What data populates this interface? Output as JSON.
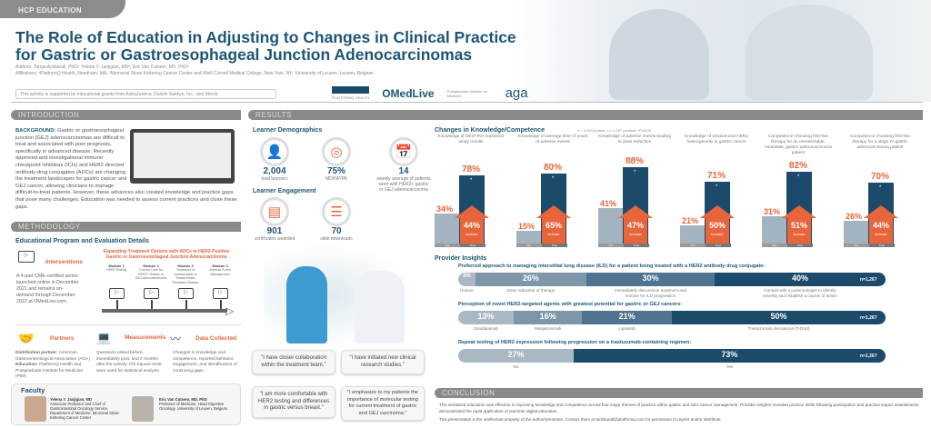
{
  "header": {
    "tag": "HCP EDUCATION",
    "title": "The Role of Education in Adjusting to Changes in Clinical Practice for Gastric or Gastroesophageal Junction Adenocarcinomas",
    "authors": "Authors: Tariqa Ackbarali, PhD¹; Yelena Y. Janjigian, MD²; Eric Van Cutsem, MD, PhD³",
    "affiliations": "Affiliations: ¹PlatformQ Health, Needham, MA; ²Memorial Sloan Kettering Cancer Center and Weill Cornell Medical College, New York, NY; ³University of Leuven, Leuven, Belgium",
    "grant": "This activity is supported by educational grants from AstraZeneca; Daiichi Sankyo, Inc.; and Merck.",
    "logos": [
      "PLATFORMQ HEALTH",
      "OMedLive",
      "Postgraduate Institute for Medicine",
      "aga"
    ]
  },
  "introduction": {
    "heading": "INTRODUCTION",
    "lead": "BACKGROUND:",
    "text": "Gastric or gastroesophageal junction (GEJ) adenocarcinomas are difficult to treat and associated with poor prognosis, specifically in advanced disease. Recently approved and investigational immune checkpoint inhibitors (ICIs) and HER2-directed antibody-drug conjugates (ADCs) are changing the treatment landscapes for gastric cancer and GEJ cancer, allowing clinicians to manage difficult-to-treat patients. However, these advances also created knowledge and practice gaps that pose many challenges. Education was needed to assess current practices and close these gaps."
  },
  "methodology": {
    "heading": "METHODOLOGY",
    "subheading": "Educational Program and Evaluation Details",
    "interventions": {
      "label": "Interventions",
      "text": "A 4-part CME-certified series launched online in December 2021 and remains on-demand through December 2022 at OMedLive.com."
    },
    "series_title": "Expanding Treatment Options with ADCs in HER2-Positive Gastric or Gastroesophageal Junction Adenocarcinoma",
    "modules": [
      {
        "name": "Module 1",
        "desc": "HER2 Testing"
      },
      {
        "name": "Module 2",
        "desc": "Current Care for HER2+ Gastric or GEJ adenocarcinoma"
      },
      {
        "name": "Module 3",
        "desc": "Treatment of Unresectable or Trastuzumab-Resistant Disease"
      },
      {
        "name": "Module 4",
        "desc": "Adverse Event Management"
      }
    ],
    "partners": {
      "label": "Partners",
      "dist_lead": "Distribution partner:",
      "dist": "American Gastroenterological Association (AGA)",
      "edu_lead": "Education:",
      "edu": "PlatformQ Health and Postgraduate Institute for Medicine (PIM)"
    },
    "measurements": {
      "label": "Measurements",
      "text": "Questions asked before, immediately post, and 2 months after the activity. Chi Square tests were used for statistical analysis."
    },
    "data_collected": {
      "label": "Data Collected",
      "text": "Changes in knowledge and competence, reported behavior, engagement, and identification of continuing gaps."
    }
  },
  "faculty": {
    "heading": "Faculty",
    "people": [
      {
        "name": "Yelena Y. Janjigian, MD",
        "title": "Associate Professor and Chief of Gastrointestinal Oncology Service, Department of Medicine, Memorial Sloan Kettering Cancer Center"
      },
      {
        "name": "Eric Van Cutsem, MD, PhD",
        "title": "Professor of Medicine, Head Digestive Oncology, University of Leuven, Belgium"
      }
    ]
  },
  "results": {
    "heading": "RESULTS",
    "demographics_title": "Learner Demographics",
    "demographics": [
      {
        "value": "2,004",
        "label": "total learners",
        "icon": "user-icon"
      },
      {
        "value": "75%",
        "label": "MD/NP/PA",
        "icon": "target-icon"
      },
      {
        "value": "14",
        "label": "weekly average of patients seen with HER2+ gastric or GEJ adenocarcinoma",
        "icon": "calendar-icon"
      }
    ],
    "engagement_title": "Learner Engagement",
    "engagement": [
      {
        "value": "901",
        "label": "certificates awarded",
        "icon": "certificate-icon"
      },
      {
        "value": "70",
        "label": "slide downloads",
        "icon": "presentation-icon"
      }
    ],
    "quotes": [
      "\"I have closer collaboration within the treatment team.\"",
      "\"I have initiated new clinical research studies.\"",
      "\"I am more comfortable with HER2 testing and differences in gastric versus breast.\"",
      "\"I emphasize to my patients the importance of molecular testing for current treatment of gastric and GEJ carcinoma.\""
    ]
  },
  "chart_data": [
    {
      "type": "bar",
      "title": "Changes in Knowledge/Competence",
      "note": "n = 2,004 pretest, n = 1,267 posttest; *P<0.05",
      "categories": [
        "Knowledge of DESTINY-Gastric02 study results",
        "Knowledge of average time of onset of adverse events",
        "Knowledge of adverse events leading to dose reduction",
        "Knowledge of intratumoral HER2 heterogeneity in gastric cancer",
        "Competence choosing first-line therapy for an unresectable, metastatic gastric adenocarcinoma patient",
        "Competence choosing first-line therapy for a stage IV gastric adenocarcinoma patient"
      ],
      "series": [
        {
          "name": "Pre",
          "values": [
            34,
            15,
            41,
            21,
            31,
            26
          ]
        },
        {
          "name": "Post",
          "values": [
            78,
            80,
            88,
            71,
            82,
            70
          ]
        }
      ],
      "increase": [
        44,
        65,
        47,
        50,
        51,
        44
      ],
      "increase_label": "increase",
      "significance_marker": "*",
      "ylim": [
        0,
        100
      ],
      "colors": {
        "pre": "#a3b3bf",
        "post": "#1b4a6b",
        "increase": "#e8643a"
      }
    },
    {
      "type": "stacked-bar",
      "title": "Provider Insights",
      "rows": [
        {
          "question": "Preferred approach to managing interstitial lung disease (ILD) for a patient being treated with a HER2 antibody drug conjugate:",
          "n": "n=1,267",
          "segments": [
            {
              "label": "Unsure",
              "value": 4
            },
            {
              "label": "Dose reduction of therapy",
              "value": 26
            },
            {
              "label": "Immediately discontinue treatment and monitor for ILD progression",
              "value": 30
            },
            {
              "label": "Consult with a pulmonologist to identify severity and establish a course of action",
              "value": 40
            }
          ]
        },
        {
          "question": "Perception of novel HER2-targeted agents with greatest potential for gastric or GEJ cancers:",
          "n": "n=1,267",
          "segments": [
            {
              "label": "Zanidatamab",
              "value": 13
            },
            {
              "label": "Margetuximab",
              "value": 16
            },
            {
              "label": "Lapatinib",
              "value": 21
            },
            {
              "label": "Trastuzumab deruxtecan (T-DXd)",
              "value": 50
            }
          ]
        },
        {
          "question": "Repeat testing of HER2 expression following progression on a trastuzumab-containing regimen:",
          "n": "n=1,267",
          "segments": [
            {
              "label": "No",
              "value": 27
            },
            {
              "label": "Yes",
              "value": 73
            }
          ]
        }
      ],
      "colors": [
        "#a9b8c3",
        "#7d96a8",
        "#4f7390",
        "#1b4a6b"
      ]
    }
  ],
  "conclusion": {
    "heading": "CONCLUSION",
    "text": "This serialized education was effective in improving knowledge and competence across four major themes of practice within gastric and GEJ cancer management. Provider insights revealed practice shifts following participation and practice impact assessments demonstrated the rapid application of real-time digital education.",
    "copyright": "This presentation is the intellectual property of the author/presenter. Contact them at tackbarali@platformq.com for permission to reprint and/or distribute."
  }
}
